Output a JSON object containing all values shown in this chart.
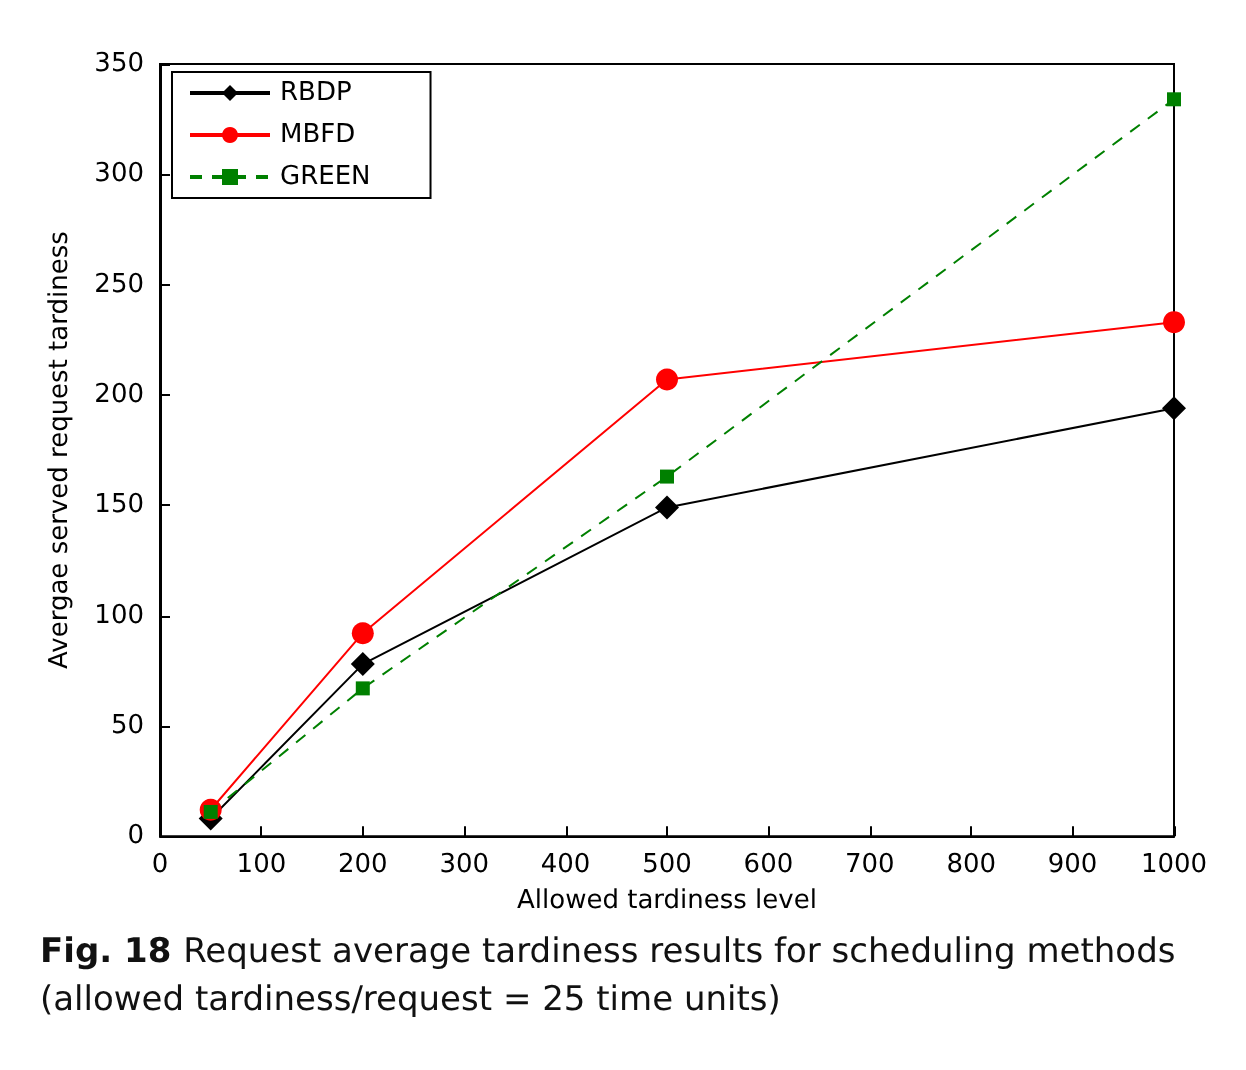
{
  "chart_data": {
    "type": "line",
    "xlabel": "Allowed tardiness level",
    "ylabel": "Avergae served request tardiness",
    "x": [
      50,
      200,
      500,
      1000
    ],
    "series": [
      {
        "name": "RBDP",
        "color": "#000000",
        "values": [
          8,
          78,
          149,
          194
        ],
        "marker": "diamond",
        "line_style": "solid"
      },
      {
        "name": "MBFD",
        "color": "#ff0000",
        "values": [
          12,
          92,
          207,
          233
        ],
        "marker": "circle",
        "line_style": "solid"
      },
      {
        "name": "GREEN",
        "color": "#008000",
        "values": [
          11,
          67,
          163,
          334
        ],
        "marker": "square",
        "line_style": "dashed"
      }
    ],
    "xlim": [
      0,
      1000
    ],
    "xticks": [
      0,
      100,
      200,
      300,
      400,
      500,
      600,
      700,
      800,
      900,
      1000
    ],
    "ylim": [
      0,
      350
    ],
    "yticks": [
      0,
      50,
      100,
      150,
      200,
      250,
      300,
      350
    ],
    "grid": false,
    "legend": "top left",
    "annotations": [
      "Fig. 18",
      "Request average tardiness results for scheduling methods (allowed tardiness/request = 25 time units)"
    ]
  }
}
